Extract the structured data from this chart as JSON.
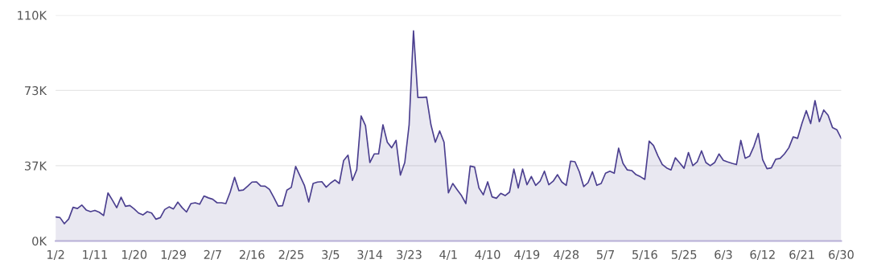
{
  "chart_data": {
    "type": "area",
    "categories": [
      "1/2",
      null,
      null,
      null,
      null,
      null,
      null,
      null,
      null,
      "1/11",
      null,
      null,
      null,
      null,
      null,
      null,
      null,
      null,
      "1/20",
      null,
      null,
      null,
      null,
      null,
      null,
      null,
      null,
      "1/29",
      null,
      null,
      null,
      null,
      null,
      null,
      null,
      null,
      "2/7",
      null,
      null,
      null,
      null,
      null,
      null,
      null,
      null,
      "2/16",
      null,
      null,
      null,
      null,
      null,
      null,
      null,
      null,
      "2/25",
      null,
      null,
      null,
      null,
      null,
      null,
      null,
      null,
      "3/5",
      null,
      null,
      null,
      null,
      null,
      null,
      null,
      null,
      "3/14",
      null,
      null,
      null,
      null,
      null,
      null,
      null,
      null,
      "3/23",
      null,
      null,
      null,
      null,
      null,
      null,
      null,
      null,
      "4/1",
      null,
      null,
      null,
      null,
      null,
      null,
      null,
      null,
      "4/10",
      null,
      null,
      null,
      null,
      null,
      null,
      null,
      null,
      "4/19",
      null,
      null,
      null,
      null,
      null,
      null,
      null,
      null,
      "4/28",
      null,
      null,
      null,
      null,
      null,
      null,
      null,
      null,
      "5/7",
      null,
      null,
      null,
      null,
      null,
      null,
      null,
      null,
      "5/16",
      null,
      null,
      null,
      null,
      null,
      null,
      null,
      null,
      "5/25",
      null,
      null,
      null,
      null,
      null,
      null,
      null,
      null,
      "6/3",
      null,
      null,
      null,
      null,
      null,
      null,
      null,
      null,
      "6/12",
      null,
      null,
      null,
      null,
      null,
      null,
      null,
      null,
      "6/21",
      null,
      null,
      null,
      null,
      null,
      null,
      null,
      null,
      "6/30"
    ],
    "series": [
      {
        "color": "#4b3f8f",
        "values": [
          11700,
          11400,
          8400,
          10700,
          16400,
          15800,
          17500,
          15100,
          14300,
          14900,
          14000,
          12400,
          23400,
          19900,
          16200,
          21300,
          16900,
          17300,
          15600,
          13600,
          12700,
          14300,
          13600,
          10600,
          11400,
          15300,
          16600,
          15600,
          18900,
          16200,
          14100,
          18200,
          18600,
          17900,
          21900,
          21000,
          20300,
          18600,
          18600,
          18200,
          23800,
          31000,
          24500,
          24800,
          26700,
          28700,
          28800,
          26800,
          26700,
          25100,
          21200,
          17000,
          17200,
          24800,
          26100,
          36300,
          31700,
          27100,
          19000,
          28000,
          28700,
          28900,
          26200,
          28200,
          29700,
          28000,
          39200,
          41800,
          29500,
          34700,
          60900,
          56200,
          38200,
          42400,
          42400,
          56600,
          48100,
          45400,
          49000,
          32100,
          38200,
          56600,
          102400,
          69900,
          69900,
          70100,
          56600,
          48100,
          53600,
          48100,
          23400,
          28000,
          25000,
          22100,
          18200,
          36500,
          36000,
          25800,
          22500,
          28800,
          21500,
          20800,
          23200,
          22100,
          23800,
          35000,
          25800,
          35000,
          27400,
          31400,
          27100,
          29100,
          34000,
          27400,
          29100,
          32300,
          28700,
          27100,
          38900,
          38600,
          33700,
          26500,
          28400,
          33700,
          27100,
          28000,
          33000,
          34000,
          33000,
          45200,
          37800,
          34600,
          34300,
          32300,
          31300,
          30000,
          48700,
          46500,
          41500,
          37300,
          35600,
          34600,
          40500,
          38000,
          35400,
          43100,
          36700,
          38500,
          43900,
          38200,
          36700,
          38200,
          42400,
          39300,
          38500,
          37800,
          37200,
          49000,
          40300,
          41300,
          46100,
          52400,
          39600,
          35200,
          35600,
          39800,
          40200,
          42400,
          45400,
          50700,
          50000,
          57200,
          63500,
          57200,
          68400,
          58100,
          63800,
          61200,
          55300,
          54200,
          50000
        ]
      }
    ],
    "ylim": [
      0,
      110000
    ],
    "yticks": [
      {
        "value": 0,
        "label": "0K"
      },
      {
        "value": 36667,
        "label": "37K"
      },
      {
        "value": 73333,
        "label": "73K"
      },
      {
        "value": 110000,
        "label": "110K"
      }
    ],
    "grid": "y",
    "marker": "none",
    "line_style": "solid"
  }
}
